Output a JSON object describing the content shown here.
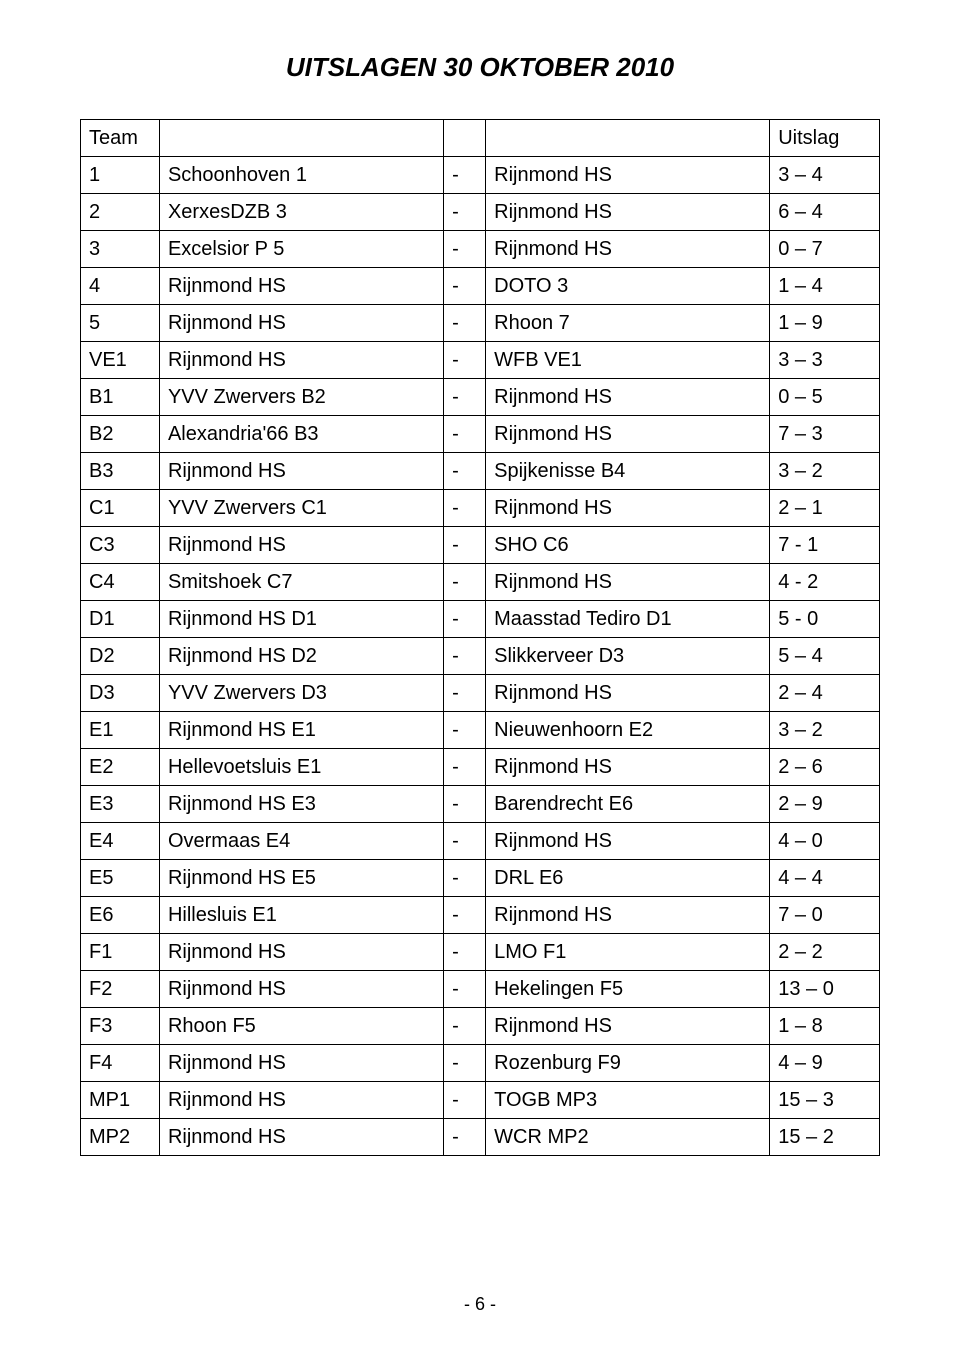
{
  "title": "UITSLAGEN 30 OKTOBER 2010",
  "header": {
    "team": "Team",
    "uitslag": "Uitslag"
  },
  "rows": [
    {
      "code": "1",
      "home": "Schoonhoven 1",
      "away": "Rijnmond HS",
      "score": "3 – 4"
    },
    {
      "code": "2",
      "home": "XerxesDZB 3",
      "away": "Rijnmond HS",
      "score": "6 – 4"
    },
    {
      "code": "3",
      "home": "Excelsior P 5",
      "away": "Rijnmond HS",
      "score": "0 – 7"
    },
    {
      "code": "4",
      "home": "Rijnmond HS",
      "away": "DOTO 3",
      "score": "1 – 4"
    },
    {
      "code": "5",
      "home": "Rijnmond HS",
      "away": "Rhoon 7",
      "score": "1 – 9"
    },
    {
      "code": "VE1",
      "home": "Rijnmond HS",
      "away": "WFB VE1",
      "score": "3 – 3"
    },
    {
      "code": "B1",
      "home": "YVV Zwervers B2",
      "away": "Rijnmond HS",
      "score": "0 – 5"
    },
    {
      "code": "B2",
      "home": "Alexandria'66 B3",
      "away": "Rijnmond HS",
      "score": "7 – 3"
    },
    {
      "code": "B3",
      "home": "Rijnmond HS",
      "away": "Spijkenisse B4",
      "score": "3 – 2"
    },
    {
      "code": "C1",
      "home": "YVV Zwervers C1",
      "away": "Rijnmond HS",
      "score": "2 – 1"
    },
    {
      "code": "C3",
      "home": "Rijnmond HS",
      "away": "SHO C6",
      "score": "7 - 1"
    },
    {
      "code": "C4",
      "home": "Smitshoek C7",
      "away": "Rijnmond HS",
      "score": "4 - 2"
    },
    {
      "code": "D1",
      "home": "Rijnmond HS D1",
      "away": "Maasstad Tediro D1",
      "score": "5 - 0"
    },
    {
      "code": "D2",
      "home": "Rijnmond HS D2",
      "away": "Slikkerveer D3",
      "score": "5 – 4"
    },
    {
      "code": "D3",
      "home": "YVV Zwervers D3",
      "away": "Rijnmond HS",
      "score": "2 – 4"
    },
    {
      "code": "E1",
      "home": "Rijnmond HS E1",
      "away": "Nieuwenhoorn E2",
      "score": "3 – 2"
    },
    {
      "code": "E2",
      "home": "Hellevoetsluis E1",
      "away": "Rijnmond HS",
      "score": "2 – 6"
    },
    {
      "code": "E3",
      "home": "Rijnmond HS E3",
      "away": "Barendrecht E6",
      "score": "2 – 9"
    },
    {
      "code": "E4",
      "home": "Overmaas E4",
      "away": "Rijnmond HS",
      "score": "4 – 0"
    },
    {
      "code": "E5",
      "home": "Rijnmond HS E5",
      "away": "DRL E6",
      "score": "4 – 4"
    },
    {
      "code": "E6",
      "home": "Hillesluis E1",
      "away": "Rijnmond HS",
      "score": "7 – 0"
    },
    {
      "code": "F1",
      "home": "Rijnmond HS",
      "away": "LMO F1",
      "score": "2 – 2"
    },
    {
      "code": "F2",
      "home": "Rijnmond HS",
      "away": "Hekelingen F5",
      "score": "13 – 0"
    },
    {
      "code": "F3",
      "home": "Rhoon F5",
      "away": "Rijnmond HS",
      "score": "1 – 8"
    },
    {
      "code": "F4",
      "home": "Rijnmond HS",
      "away": "Rozenburg F9",
      "score": "4 – 9"
    },
    {
      "code": "MP1",
      "home": "Rijnmond HS",
      "away": "TOGB MP3",
      "score": "15 – 3"
    },
    {
      "code": "MP2",
      "home": "Rijnmond HS",
      "away": "WCR MP2",
      "score": "15 – 2"
    }
  ],
  "dash": "-",
  "footer": "- 6 -"
}
